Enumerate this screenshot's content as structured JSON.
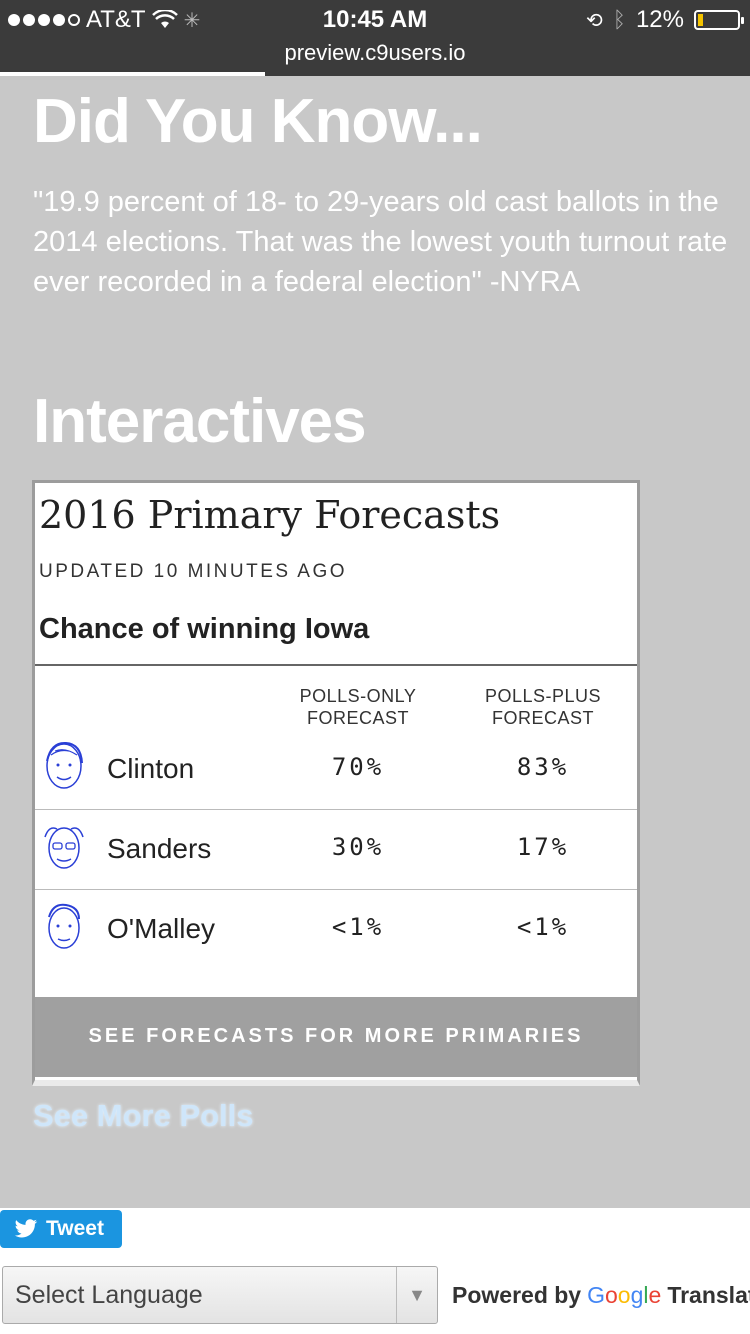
{
  "status_bar": {
    "carrier": "AT&T",
    "time": "10:45 AM",
    "url": "preview.c9users.io",
    "battery": "12%",
    "battery_level": 0.12
  },
  "page": {
    "did_you_know_heading": "Did You Know...",
    "quote": "\"19.9 percent of 18- to 29-years old cast ballots in the 2014 elections. That was the lowest youth turnout rate ever recorded in a federal election\" -NYRA",
    "interactives_heading": "Interactives",
    "see_more_polls": "See More Polls"
  },
  "widget": {
    "title": "2016 Primary Forecasts",
    "updated": "UPDATED 10 MINUTES AGO",
    "subtitle": "Chance of winning Iowa",
    "col_polls_only": "POLLS-ONLY FORECAST",
    "col_polls_plus": "POLLS-PLUS FORECAST",
    "rows": [
      {
        "name": "Clinton",
        "polls_only": "70%",
        "polls_plus": "83%"
      },
      {
        "name": "Sanders",
        "polls_only": "30%",
        "polls_plus": "17%"
      },
      {
        "name": "O'Malley",
        "polls_only": "<1%",
        "polls_plus": "<1%"
      }
    ],
    "button": "SEE FORECASTS FOR MORE PRIMARIES"
  },
  "footer": {
    "tweet": "Tweet",
    "select_language": "Select Language",
    "powered_by": "Powered by",
    "google": "Google",
    "translate": "Translat"
  },
  "colors": {
    "background": "#c8c8c8",
    "status_bar": "#3b3b3b",
    "tweet_blue": "#1b95e0",
    "button_grey": "#a0a0a0",
    "link": "#cfe6fa"
  }
}
